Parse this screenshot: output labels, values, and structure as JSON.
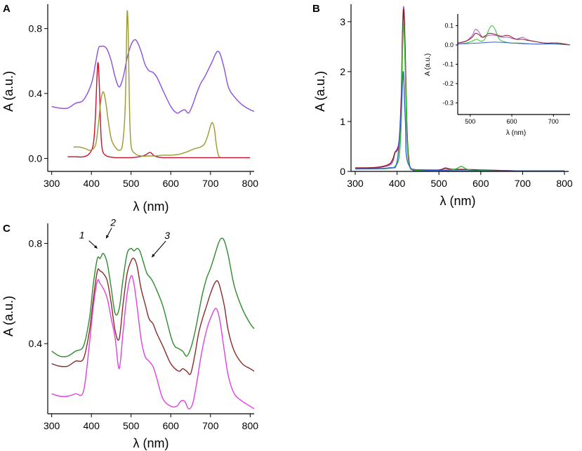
{
  "figure": {
    "panels": [
      {
        "letter": "A"
      },
      {
        "letter": "B"
      },
      {
        "letter": "C"
      }
    ]
  },
  "chart_data": [
    {
      "id": "A",
      "type": "line",
      "xlabel": "λ (nm)",
      "ylabel": "A (a.u.)",
      "xlim": [
        290,
        810
      ],
      "ylim": [
        -0.08,
        0.95
      ],
      "xticks": [
        300,
        400,
        500,
        600,
        700,
        800
      ],
      "yticks": [
        0.0,
        0.4,
        0.8
      ],
      "ytick_labels": [
        "0.0",
        "0.4",
        "0.8"
      ],
      "series": [
        {
          "name": "purple",
          "color": "#8a4fe0",
          "x": [
            300,
            320,
            340,
            360,
            380,
            400,
            410,
            418,
            425,
            432,
            440,
            450,
            460,
            470,
            480,
            490,
            500,
            508,
            515,
            525,
            535,
            545,
            555,
            565,
            580,
            600,
            615,
            625,
            635,
            645,
            655,
            665,
            675,
            685,
            695,
            705,
            712,
            718,
            725,
            735,
            745,
            760,
            780,
            800,
            810
          ],
          "y": [
            0.32,
            0.31,
            0.31,
            0.34,
            0.36,
            0.46,
            0.58,
            0.68,
            0.69,
            0.69,
            0.67,
            0.6,
            0.5,
            0.44,
            0.5,
            0.62,
            0.7,
            0.73,
            0.72,
            0.66,
            0.58,
            0.54,
            0.53,
            0.5,
            0.42,
            0.32,
            0.28,
            0.29,
            0.3,
            0.28,
            0.33,
            0.4,
            0.46,
            0.5,
            0.55,
            0.6,
            0.64,
            0.66,
            0.64,
            0.55,
            0.44,
            0.38,
            0.33,
            0.3,
            0.29
          ]
        },
        {
          "name": "red",
          "color": "#c8102e",
          "x": [
            340,
            360,
            380,
            395,
            405,
            410,
            414,
            417,
            420,
            424,
            428,
            435,
            445,
            460,
            480,
            500,
            520,
            535,
            545,
            550,
            556,
            565,
            580,
            600,
            650,
            700,
            750,
            800
          ],
          "y": [
            0.01,
            0.01,
            0.01,
            0.03,
            0.09,
            0.25,
            0.5,
            0.59,
            0.45,
            0.15,
            0.05,
            0.02,
            0.01,
            0.005,
            0.005,
            0.005,
            0.01,
            0.02,
            0.035,
            0.035,
            0.02,
            0.01,
            0.005,
            0.005,
            0.005,
            0.005,
            0.005,
            0.005
          ]
        },
        {
          "name": "olive",
          "color": "#9a9a2e",
          "x": [
            355,
            370,
            385,
            395,
            405,
            412,
            418,
            424,
            430,
            436,
            442,
            450,
            460,
            470,
            478,
            484,
            487,
            490,
            493,
            496,
            500,
            510,
            525,
            545,
            560,
            580,
            600,
            620,
            640,
            660,
            675,
            685,
            693,
            700,
            705,
            710,
            715,
            720,
            725
          ],
          "y": [
            0.07,
            0.07,
            0.06,
            0.05,
            0.06,
            0.1,
            0.22,
            0.36,
            0.41,
            0.35,
            0.24,
            0.12,
            0.07,
            0.05,
            0.08,
            0.25,
            0.5,
            0.9,
            0.75,
            0.3,
            0.08,
            0.03,
            0.015,
            0.015,
            0.015,
            0.02,
            0.02,
            0.025,
            0.04,
            0.06,
            0.07,
            0.09,
            0.14,
            0.2,
            0.22,
            0.18,
            0.08,
            0.02,
            0.005
          ]
        }
      ]
    },
    {
      "id": "B",
      "type": "line",
      "xlabel": "λ (nm)",
      "ylabel": "A (a.u.)",
      "xlim": [
        290,
        810
      ],
      "ylim": [
        0,
        3.35
      ],
      "xticks": [
        300,
        400,
        500,
        600,
        700,
        800
      ],
      "yticks": [
        0,
        1,
        2,
        3
      ],
      "series": [
        {
          "name": "purple",
          "color": "#b04ee0",
          "x": [
            300,
            350,
            380,
            390,
            395,
            400,
            405,
            410,
            413,
            416,
            419,
            424,
            430,
            440,
            460,
            500,
            515,
            525,
            540,
            560,
            600,
            640,
            700,
            800
          ],
          "y": [
            0.06,
            0.07,
            0.12,
            0.2,
            0.38,
            0.45,
            0.65,
            1.5,
            2.8,
            3.3,
            2.6,
            0.8,
            0.12,
            0.04,
            0.03,
            0.03,
            0.07,
            0.05,
            0.04,
            0.04,
            0.02,
            0.02,
            0.01,
            0.01
          ]
        },
        {
          "name": "darkred",
          "color": "#8b1a1a",
          "x": [
            300,
            350,
            380,
            390,
            395,
            400,
            405,
            410,
            413,
            416,
            419,
            424,
            430,
            440,
            460,
            500,
            515,
            525,
            540,
            560,
            600,
            640,
            700,
            800
          ],
          "y": [
            0.07,
            0.08,
            0.14,
            0.25,
            0.38,
            0.42,
            0.6,
            1.4,
            2.7,
            3.25,
            2.5,
            0.75,
            0.12,
            0.04,
            0.03,
            0.03,
            0.06,
            0.05,
            0.04,
            0.04,
            0.03,
            0.02,
            0.01,
            0.01
          ]
        },
        {
          "name": "green",
          "color": "#2ec42e",
          "x": [
            300,
            350,
            380,
            395,
            405,
            410,
            413,
            416,
            419,
            424,
            430,
            440,
            460,
            500,
            520,
            540,
            550,
            555,
            565,
            580,
            600,
            640,
            700,
            800
          ],
          "y": [
            0.05,
            0.05,
            0.06,
            0.1,
            0.3,
            1.0,
            2.4,
            2.95,
            2.2,
            0.6,
            0.1,
            0.03,
            0.02,
            0.02,
            0.03,
            0.05,
            0.09,
            0.1,
            0.05,
            0.02,
            0.02,
            0.01,
            0.01,
            0.01
          ]
        },
        {
          "name": "blue",
          "color": "#3a5fd0",
          "x": [
            300,
            380,
            400,
            410,
            415,
            420,
            430,
            500,
            800
          ],
          "y": [
            0.05,
            0.07,
            0.2,
            1.2,
            2.0,
            1.0,
            0.1,
            0.02,
            0.01
          ]
        }
      ],
      "inset": {
        "xlabel": "λ (nm)",
        "ylabel": "A (a.u.)",
        "xlim": [
          470,
          740
        ],
        "ylim": [
          -0.36,
          0.16
        ],
        "xticks": [
          500,
          600,
          700
        ],
        "yticks": [
          0.1,
          0.0,
          -0.1,
          -0.2,
          -0.3
        ],
        "ytick_labels": [
          "0.1",
          "0.0",
          "-0.1",
          "-0.2",
          "-0.3"
        ],
        "series": [
          {
            "name": "purple",
            "color": "#b04ee0",
            "x": [
              470,
              490,
              505,
              512,
              520,
              530,
              545,
              560,
              575,
              590,
              610,
              625,
              635,
              650,
              680,
              710,
              740
            ],
            "y": [
              0.01,
              0.02,
              0.05,
              0.08,
              0.07,
              0.04,
              0.05,
              0.05,
              0.04,
              0.04,
              0.03,
              0.04,
              0.03,
              0.02,
              0.01,
              0.01,
              0.0
            ]
          },
          {
            "name": "darkred",
            "color": "#8b1a1a",
            "x": [
              470,
              490,
              505,
              512,
              520,
              530,
              545,
              560,
              575,
              590,
              610,
              625,
              635,
              650,
              680,
              710,
              740
            ],
            "y": [
              0.01,
              0.02,
              0.04,
              0.06,
              0.055,
              0.04,
              0.06,
              0.055,
              0.045,
              0.05,
              0.03,
              0.03,
              0.025,
              0.02,
              0.01,
              0.01,
              0.0
            ]
          },
          {
            "name": "green",
            "color": "#2ec42e",
            "x": [
              470,
              490,
              505,
              515,
              525,
              535,
              545,
              552,
              560,
              570,
              585,
              600,
              620,
              650,
              680,
              710,
              740
            ],
            "y": [
              0.005,
              0.01,
              0.02,
              0.03,
              0.02,
              0.03,
              0.08,
              0.1,
              0.08,
              0.03,
              0.015,
              0.01,
              0.01,
              0.005,
              0.005,
              0.005,
              0.0
            ]
          },
          {
            "name": "blue",
            "color": "#3a5fd0",
            "x": [
              470,
              520,
              560,
              600,
              650,
              700,
              740
            ],
            "y": [
              0.005,
              0.01,
              0.015,
              0.01,
              0.005,
              0.005,
              0.0
            ]
          }
        ]
      }
    },
    {
      "id": "C",
      "type": "line",
      "xlabel": "λ (nm)",
      "ylabel": "A (a.u.)",
      "xlim": [
        290,
        810
      ],
      "ylim": [
        0.12,
        0.88
      ],
      "xticks": [
        300,
        400,
        500,
        600,
        700,
        800
      ],
      "yticks": [
        0.4,
        0.8
      ],
      "ytick_labels": [
        "0.4",
        "0.8"
      ],
      "annotations": [
        {
          "label": "1",
          "x": 415,
          "y": 0.78
        },
        {
          "label": "2",
          "x": 437,
          "y": 0.82
        },
        {
          "label": "3",
          "x": 552,
          "y": 0.745
        }
      ],
      "series": [
        {
          "name": "1",
          "color": "#2e8b2e",
          "x": [
            300,
            320,
            340,
            360,
            380,
            395,
            405,
            415,
            422,
            430,
            440,
            450,
            460,
            470,
            480,
            490,
            500,
            507,
            515,
            522,
            530,
            540,
            550,
            560,
            580,
            600,
            610,
            620,
            630,
            640,
            650,
            660,
            670,
            680,
            690,
            700,
            710,
            720,
            727,
            735,
            745,
            760,
            780,
            800,
            810
          ],
          "y": [
            0.37,
            0.35,
            0.35,
            0.37,
            0.39,
            0.5,
            0.64,
            0.74,
            0.74,
            0.76,
            0.72,
            0.62,
            0.52,
            0.54,
            0.66,
            0.76,
            0.78,
            0.77,
            0.78,
            0.77,
            0.73,
            0.68,
            0.66,
            0.63,
            0.55,
            0.43,
            0.39,
            0.38,
            0.37,
            0.35,
            0.38,
            0.44,
            0.52,
            0.6,
            0.66,
            0.7,
            0.75,
            0.8,
            0.82,
            0.81,
            0.75,
            0.63,
            0.54,
            0.48,
            0.46
          ]
        },
        {
          "name": "2",
          "color": "#8b2a2a",
          "x": [
            300,
            320,
            340,
            360,
            380,
            395,
            405,
            415,
            422,
            430,
            440,
            450,
            460,
            470,
            480,
            490,
            500,
            507,
            515,
            525,
            535,
            545,
            555,
            565,
            580,
            600,
            620,
            630,
            640,
            650,
            660,
            670,
            680,
            690,
            700,
            710,
            718,
            725,
            735,
            745,
            760,
            780,
            800,
            810
          ],
          "y": [
            0.32,
            0.31,
            0.31,
            0.33,
            0.34,
            0.45,
            0.58,
            0.69,
            0.69,
            0.68,
            0.65,
            0.56,
            0.45,
            0.42,
            0.56,
            0.68,
            0.73,
            0.74,
            0.71,
            0.62,
            0.56,
            0.5,
            0.48,
            0.44,
            0.39,
            0.32,
            0.29,
            0.3,
            0.29,
            0.28,
            0.35,
            0.44,
            0.5,
            0.55,
            0.6,
            0.64,
            0.65,
            0.62,
            0.55,
            0.45,
            0.37,
            0.32,
            0.3,
            0.29
          ]
        },
        {
          "name": "3",
          "color": "#e040e0",
          "x": [
            300,
            320,
            340,
            360,
            380,
            395,
            405,
            415,
            422,
            430,
            440,
            450,
            460,
            470,
            480,
            490,
            500,
            507,
            515,
            525,
            535,
            545,
            555,
            565,
            580,
            600,
            615,
            625,
            635,
            645,
            655,
            665,
            675,
            685,
            695,
            705,
            712,
            718,
            725,
            735,
            745,
            760,
            780,
            800,
            810
          ],
          "y": [
            0.2,
            0.19,
            0.19,
            0.2,
            0.21,
            0.4,
            0.55,
            0.65,
            0.64,
            0.62,
            0.58,
            0.5,
            0.42,
            0.3,
            0.45,
            0.6,
            0.67,
            0.64,
            0.55,
            0.42,
            0.35,
            0.33,
            0.31,
            0.26,
            0.18,
            0.15,
            0.15,
            0.17,
            0.17,
            0.14,
            0.16,
            0.24,
            0.34,
            0.42,
            0.48,
            0.52,
            0.54,
            0.53,
            0.48,
            0.37,
            0.27,
            0.2,
            0.17,
            0.15,
            0.14
          ]
        }
      ]
    }
  ]
}
